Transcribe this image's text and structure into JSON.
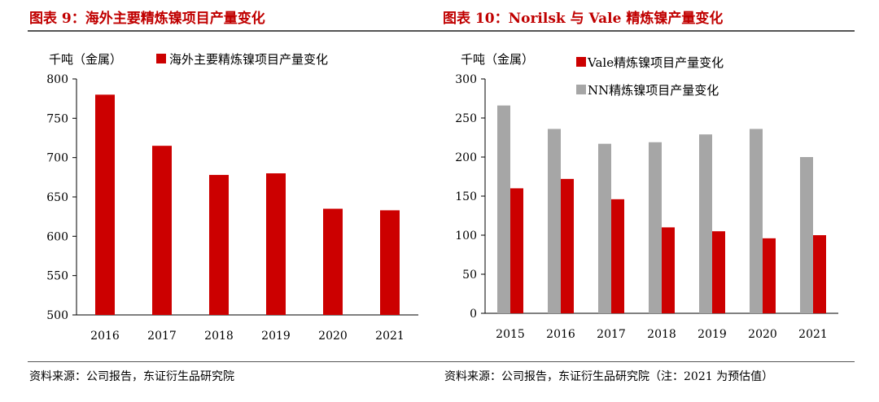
{
  "header": {
    "left_title": "图表 9：海外主要精炼镍项目产量变化",
    "right_title": "图表 10：Norilsk 与 Vale 精炼镍产量变化"
  },
  "footer": {
    "left_source": "资料来源：公司报告，东证衍生品研究院",
    "right_source": "资料来源：公司报告，东证衍生品研究院（注：2021 为预估值）"
  },
  "chart_data": [
    {
      "type": "bar",
      "title": "",
      "ylabel": "千吨（金属）",
      "xlabel": "",
      "categories": [
        "2016",
        "2017",
        "2018",
        "2019",
        "2020",
        "2021"
      ],
      "series": [
        {
          "name": "海外主要精炼镍项目产量变化",
          "values": [
            780,
            715,
            678,
            680,
            635,
            633
          ],
          "color": "#cc0000"
        }
      ],
      "ylim": [
        500,
        800
      ],
      "yticks": [
        500,
        550,
        600,
        650,
        700,
        750,
        800
      ],
      "grid": false,
      "legend": "top"
    },
    {
      "type": "bar",
      "title": "",
      "ylabel": "千吨（金属）",
      "xlabel": "",
      "categories": [
        "2015",
        "2016",
        "2017",
        "2018",
        "2019",
        "2020",
        "2021"
      ],
      "series": [
        {
          "name": "NN精炼镍项目产量变化",
          "values": [
            266,
            236,
            217,
            219,
            229,
            236,
            200
          ],
          "color": "#a6a6a6"
        },
        {
          "name": "Vale精炼镍项目产量变化",
          "values": [
            160,
            172,
            146,
            110,
            105,
            96,
            100
          ],
          "color": "#cc0000"
        }
      ],
      "ylim": [
        0,
        300
      ],
      "yticks": [
        0,
        50,
        100,
        150,
        200,
        250,
        300
      ],
      "grid": false,
      "legend": "top"
    }
  ]
}
